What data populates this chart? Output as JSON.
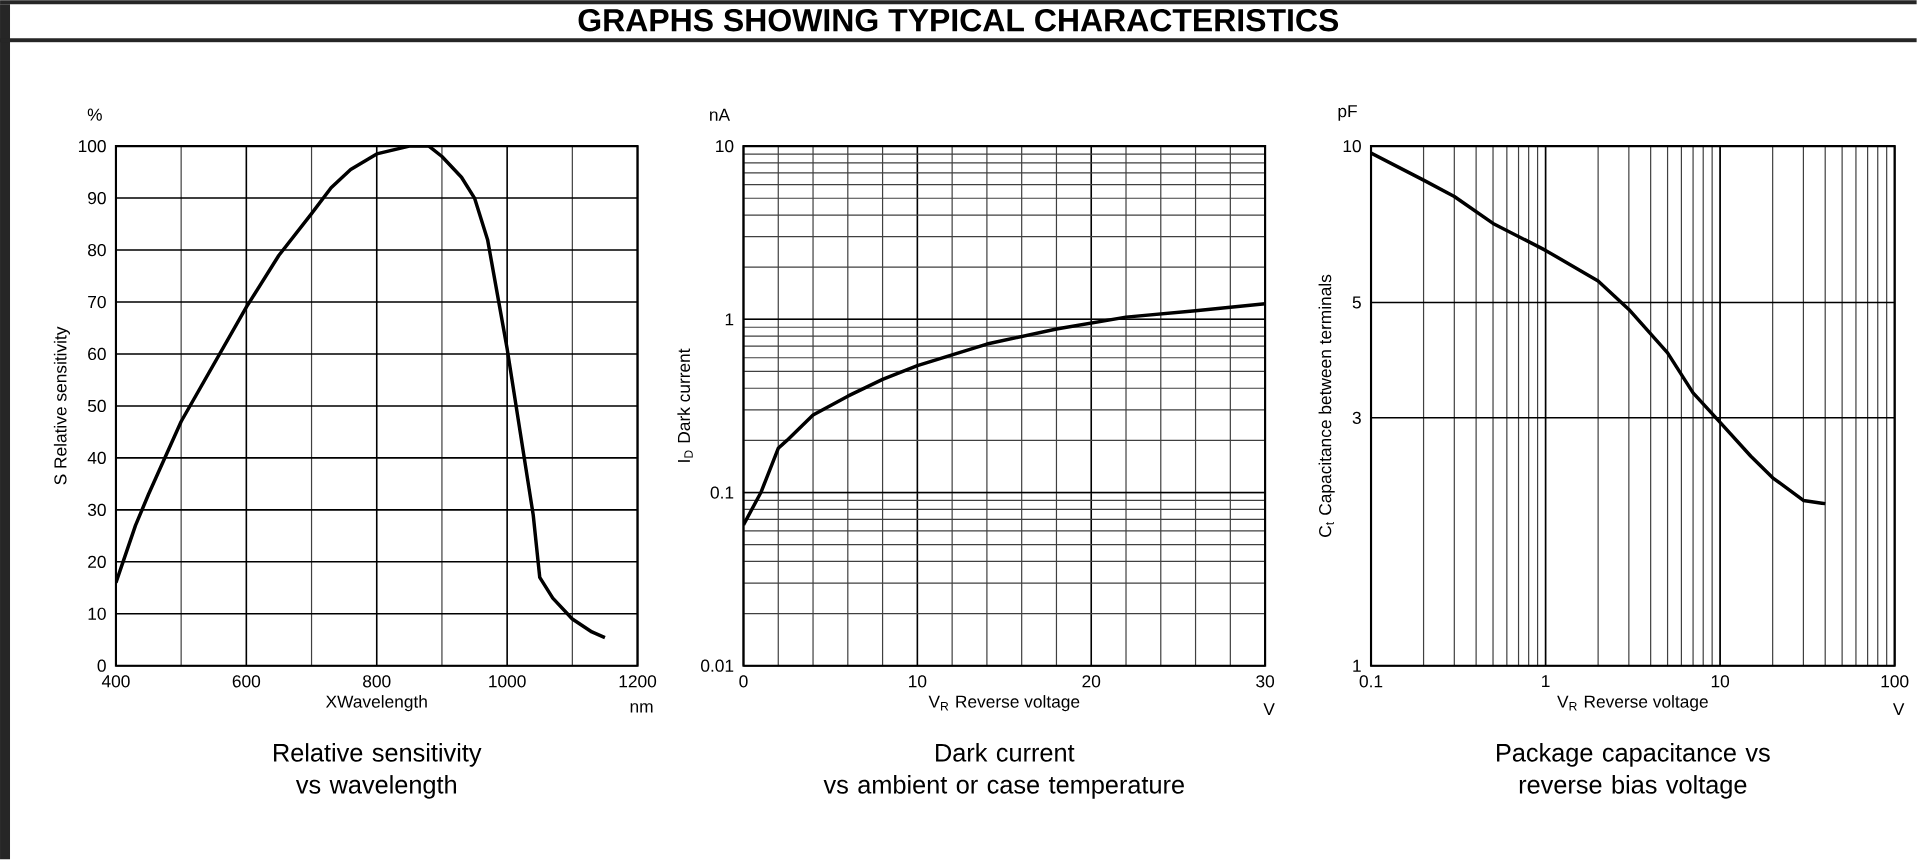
{
  "chart_data": [
    {
      "type": "other",
      "title": "GRAPHS SHOWING TYPICAL CHARACTERISTICS"
    },
    {
      "type": "line",
      "title": "Relative sensitivity\nvs wavelength",
      "xlabel": "XWavelength",
      "ylabel": "S  Relative sensitivity",
      "annotations": [
        "%",
        "nm"
      ],
      "grid": true,
      "xlim": [
        400,
        1200
      ],
      "ylim": [
        0,
        100
      ],
      "xticks": [
        400,
        600,
        800,
        1000,
        1200
      ],
      "yticks": [
        0,
        10,
        20,
        30,
        40,
        50,
        60,
        70,
        80,
        90,
        100
      ],
      "x": [
        400,
        430,
        450,
        500,
        550,
        600,
        650,
        700,
        730,
        760,
        800,
        850,
        880,
        900,
        930,
        950,
        970,
        990,
        1000,
        1020,
        1040,
        1050,
        1070,
        1100,
        1130,
        1150
      ],
      "series": [
        {
          "color": "#000000",
          "values": [
            16,
            27,
            33,
            47,
            58,
            69,
            79,
            87,
            92,
            95.5,
            98.5,
            100,
            100,
            98,
            94,
            90,
            82,
            68,
            61,
            45,
            29,
            17,
            13,
            9,
            6.5,
            5.4
          ]
        }
      ]
    },
    {
      "type": "line",
      "title": "Dark current\nvs ambient or case temperature",
      "xlabel": "V$_{R}$ Reverse voltage",
      "ylabel": "I$_{D}$ Dark current",
      "annotations": [
        "nA",
        "V"
      ],
      "grid": true,
      "log": "y",
      "xlim": [
        0,
        30
      ],
      "ylim": [
        0.01,
        10
      ],
      "xticks": [
        0,
        10,
        20,
        30
      ],
      "yticks": [
        0.01,
        0.1,
        1,
        10
      ],
      "x": [
        0,
        1,
        2,
        2.5,
        4,
        6,
        8,
        10,
        14,
        18,
        22,
        26,
        30
      ],
      "series": [
        {
          "color": "#000000",
          "values": [
            0.065,
            0.1,
            0.18,
            0.2,
            0.28,
            0.36,
            0.45,
            0.54,
            0.72,
            0.88,
            1.03,
            1.12,
            1.23
          ]
        }
      ]
    },
    {
      "type": "line",
      "title": "Package capacitance vs\nreverse bias voltage",
      "xlabel": "V$_{R}$ Reverse voltage",
      "ylabel": "C$_{t}$ Capacitance between terminals",
      "annotations": [
        "pF",
        "V"
      ],
      "grid": true,
      "log": "xy",
      "xlim": [
        0.1,
        100
      ],
      "ylim": [
        1,
        10
      ],
      "xticks": [
        0.1,
        1,
        10,
        100
      ],
      "yticks": [
        1,
        3,
        5,
        10
      ],
      "x": [
        0.1,
        0.2,
        0.3,
        0.5,
        1,
        2,
        3,
        5,
        7,
        10,
        15,
        20,
        30,
        40
      ],
      "series": [
        {
          "color": "#000000",
          "values": [
            9.7,
            8.6,
            8.0,
            7.1,
            6.3,
            5.5,
            4.85,
            4.0,
            3.35,
            2.94,
            2.53,
            2.3,
            2.08,
            2.05
          ]
        }
      ]
    }
  ]
}
